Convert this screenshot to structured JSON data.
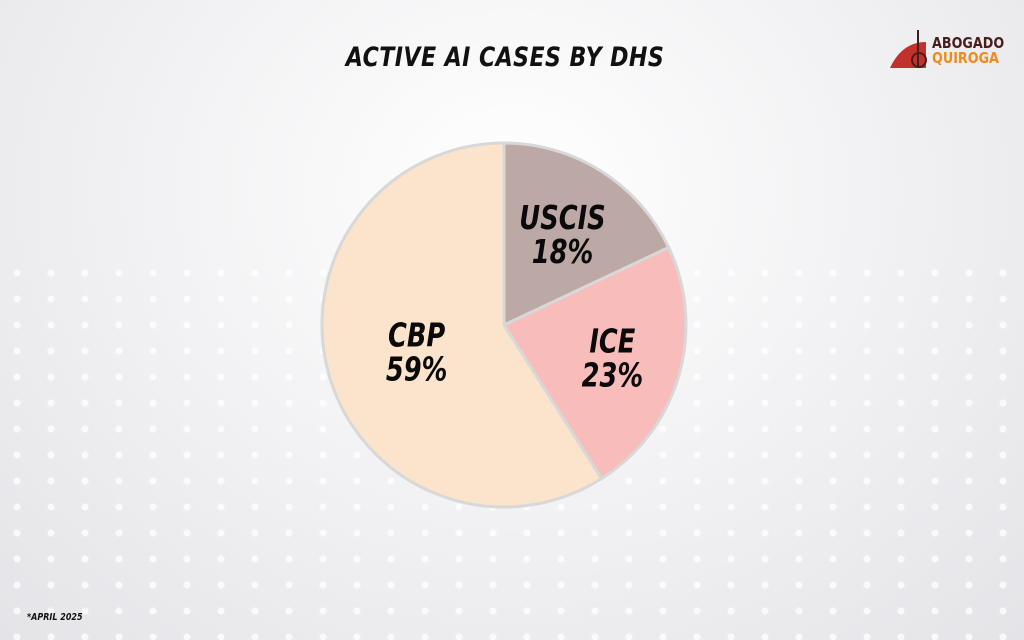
{
  "chart_data": {
    "type": "pie",
    "title": "ACTIVE AI CASES BY DHS",
    "slices": [
      {
        "label": "USCIS",
        "value": 18,
        "display": "18%",
        "color": "#bca8a5"
      },
      {
        "label": "ICE",
        "value": 23,
        "display": "23%",
        "color": "#f8bcbb"
      },
      {
        "label": "CBP",
        "value": 59,
        "display": "59%",
        "color": "#fce3cb"
      }
    ],
    "start": "12 o'clock",
    "direction": "clockwise",
    "legend": "none"
  },
  "logo": {
    "line1": "ABOGADO",
    "line2": "QUIROGA",
    "colors": [
      "#4a1d1d",
      "#f08a1c",
      "#c0322b"
    ]
  },
  "footnote": "*APRIL 2025"
}
